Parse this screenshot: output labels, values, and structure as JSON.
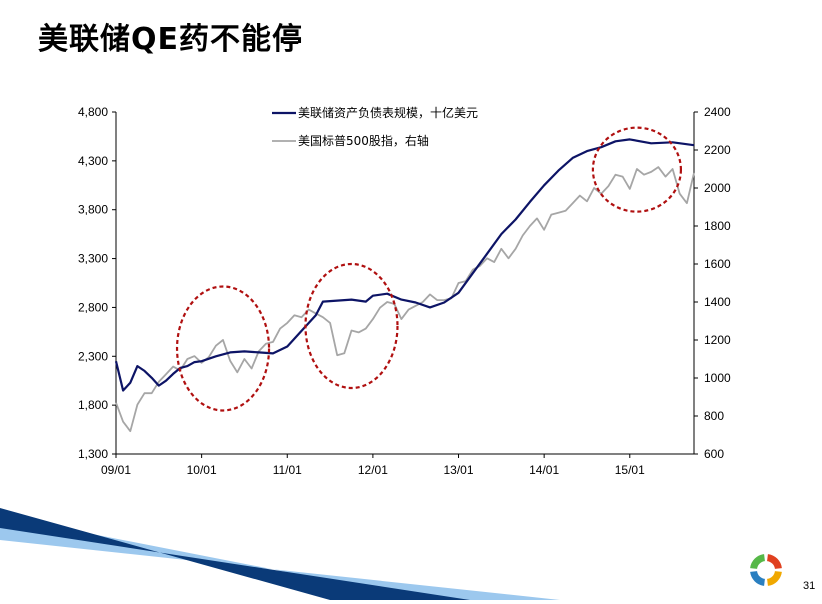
{
  "slide": {
    "title": "美联储QE药不能停",
    "page_number": "31"
  },
  "colors": {
    "fed_line": "#0d1466",
    "spx_line": "#a6a6a6",
    "highlight_circle": "#b01010",
    "stripe_dark": "#0a3a78",
    "stripe_light": "#9cc8ee"
  },
  "logo": {
    "icon": "circular-logo-icon",
    "segments": [
      "#e0401f",
      "#f0a800",
      "#2a7fc0",
      "#56b848"
    ]
  },
  "chart_data": {
    "type": "line",
    "x_tick_labels": [
      "09/01",
      "10/01",
      "11/01",
      "12/01",
      "13/01",
      "14/01",
      "15/01"
    ],
    "xlim": [
      "2009-01",
      "2015-10"
    ],
    "y_left": {
      "ylim": [
        1300,
        4800
      ],
      "tick_labels": [
        "1,300",
        "1,800",
        "2,300",
        "2,800",
        "3,300",
        "3,800",
        "4,300",
        "4,800"
      ],
      "ticks": [
        1300,
        1800,
        2300,
        2800,
        3300,
        3800,
        4300,
        4800
      ]
    },
    "y_right": {
      "ylim": [
        600,
        2400
      ],
      "tick_labels": [
        "600",
        "800",
        "1000",
        "1200",
        "1400",
        "1600",
        "1800",
        "2000",
        "2200",
        "2400"
      ],
      "ticks": [
        600,
        800,
        1000,
        1200,
        1400,
        1600,
        1800,
        2000,
        2200,
        2400
      ]
    },
    "grid": false,
    "legend_position": "top-center",
    "series": [
      {
        "name": "美联储资产负债表规模，十亿美元",
        "axis": "left",
        "points": [
          [
            "2009-01",
            2250
          ],
          [
            "2009-02",
            1950
          ],
          [
            "2009-03",
            2030
          ],
          [
            "2009-04",
            2200
          ],
          [
            "2009-05",
            2150
          ],
          [
            "2009-06",
            2080
          ],
          [
            "2009-07",
            2000
          ],
          [
            "2009-08",
            2050
          ],
          [
            "2009-09",
            2120
          ],
          [
            "2009-10",
            2180
          ],
          [
            "2009-11",
            2200
          ],
          [
            "2009-12",
            2240
          ],
          [
            "2010-01",
            2250
          ],
          [
            "2010-03",
            2300
          ],
          [
            "2010-05",
            2340
          ],
          [
            "2010-07",
            2350
          ],
          [
            "2010-09",
            2340
          ],
          [
            "2010-11",
            2330
          ],
          [
            "2011-01",
            2400
          ],
          [
            "2011-03",
            2560
          ],
          [
            "2011-05",
            2720
          ],
          [
            "2011-06",
            2860
          ],
          [
            "2011-08",
            2870
          ],
          [
            "2011-10",
            2880
          ],
          [
            "2011-12",
            2860
          ],
          [
            "2012-01",
            2920
          ],
          [
            "2012-03",
            2940
          ],
          [
            "2012-05",
            2880
          ],
          [
            "2012-07",
            2850
          ],
          [
            "2012-09",
            2800
          ],
          [
            "2012-11",
            2850
          ],
          [
            "2013-01",
            2950
          ],
          [
            "2013-03",
            3150
          ],
          [
            "2013-05",
            3350
          ],
          [
            "2013-07",
            3550
          ],
          [
            "2013-09",
            3700
          ],
          [
            "2013-11",
            3880
          ],
          [
            "2014-01",
            4050
          ],
          [
            "2014-03",
            4200
          ],
          [
            "2014-05",
            4330
          ],
          [
            "2014-07",
            4400
          ],
          [
            "2014-09",
            4440
          ],
          [
            "2014-11",
            4500
          ],
          [
            "2015-01",
            4520
          ],
          [
            "2015-04",
            4480
          ],
          [
            "2015-07",
            4490
          ],
          [
            "2015-10",
            4460
          ]
        ]
      },
      {
        "name": "美国标普500股指，右轴",
        "axis": "right",
        "points": [
          [
            "2009-01",
            870
          ],
          [
            "2009-02",
            770
          ],
          [
            "2009-03",
            720
          ],
          [
            "2009-04",
            860
          ],
          [
            "2009-05",
            920
          ],
          [
            "2009-06",
            920
          ],
          [
            "2009-07",
            980
          ],
          [
            "2009-08",
            1020
          ],
          [
            "2009-09",
            1060
          ],
          [
            "2009-10",
            1040
          ],
          [
            "2009-11",
            1100
          ],
          [
            "2009-12",
            1115
          ],
          [
            "2010-01",
            1080
          ],
          [
            "2010-02",
            1110
          ],
          [
            "2010-03",
            1170
          ],
          [
            "2010-04",
            1200
          ],
          [
            "2010-05",
            1090
          ],
          [
            "2010-06",
            1030
          ],
          [
            "2010-07",
            1100
          ],
          [
            "2010-08",
            1050
          ],
          [
            "2010-09",
            1140
          ],
          [
            "2010-10",
            1180
          ],
          [
            "2010-11",
            1190
          ],
          [
            "2010-12",
            1260
          ],
          [
            "2011-01",
            1290
          ],
          [
            "2011-02",
            1330
          ],
          [
            "2011-03",
            1320
          ],
          [
            "2011-04",
            1360
          ],
          [
            "2011-05",
            1340
          ],
          [
            "2011-06",
            1320
          ],
          [
            "2011-07",
            1290
          ],
          [
            "2011-08",
            1120
          ],
          [
            "2011-09",
            1130
          ],
          [
            "2011-10",
            1250
          ],
          [
            "2011-11",
            1240
          ],
          [
            "2011-12",
            1260
          ],
          [
            "2012-01",
            1310
          ],
          [
            "2012-02",
            1370
          ],
          [
            "2012-03",
            1400
          ],
          [
            "2012-04",
            1390
          ],
          [
            "2012-05",
            1310
          ],
          [
            "2012-06",
            1360
          ],
          [
            "2012-07",
            1380
          ],
          [
            "2012-08",
            1400
          ],
          [
            "2012-09",
            1440
          ],
          [
            "2012-10",
            1410
          ],
          [
            "2012-11",
            1410
          ],
          [
            "2012-12",
            1420
          ],
          [
            "2013-01",
            1500
          ],
          [
            "2013-02",
            1510
          ],
          [
            "2013-03",
            1570
          ],
          [
            "2013-04",
            1590
          ],
          [
            "2013-05",
            1630
          ],
          [
            "2013-06",
            1610
          ],
          [
            "2013-07",
            1680
          ],
          [
            "2013-08",
            1630
          ],
          [
            "2013-09",
            1680
          ],
          [
            "2013-10",
            1750
          ],
          [
            "2013-11",
            1800
          ],
          [
            "2013-12",
            1840
          ],
          [
            "2014-01",
            1780
          ],
          [
            "2014-02",
            1860
          ],
          [
            "2014-03",
            1870
          ],
          [
            "2014-04",
            1880
          ],
          [
            "2014-05",
            1920
          ],
          [
            "2014-06",
            1960
          ],
          [
            "2014-07",
            1930
          ],
          [
            "2014-08",
            2000
          ],
          [
            "2014-09",
            1970
          ],
          [
            "2014-10",
            2010
          ],
          [
            "2014-11",
            2070
          ],
          [
            "2014-12",
            2060
          ],
          [
            "2015-01",
            1995
          ],
          [
            "2015-02",
            2100
          ],
          [
            "2015-03",
            2070
          ],
          [
            "2015-04",
            2085
          ],
          [
            "2015-05",
            2110
          ],
          [
            "2015-06",
            2060
          ],
          [
            "2015-07",
            2100
          ],
          [
            "2015-08",
            1970
          ],
          [
            "2015-09",
            1920
          ],
          [
            "2015-10",
            2080
          ]
        ]
      }
    ],
    "annotations": [
      {
        "type": "dashed-circle",
        "center": [
          "2010-04",
          2380
        ],
        "axis": "left",
        "note": ""
      },
      {
        "type": "dashed-circle",
        "center": [
          "2011-10",
          2610
        ],
        "axis": "left",
        "note": ""
      },
      {
        "type": "dashed-circle",
        "center": [
          "2015-02",
          4210
        ],
        "axis": "left",
        "note": ""
      }
    ]
  }
}
